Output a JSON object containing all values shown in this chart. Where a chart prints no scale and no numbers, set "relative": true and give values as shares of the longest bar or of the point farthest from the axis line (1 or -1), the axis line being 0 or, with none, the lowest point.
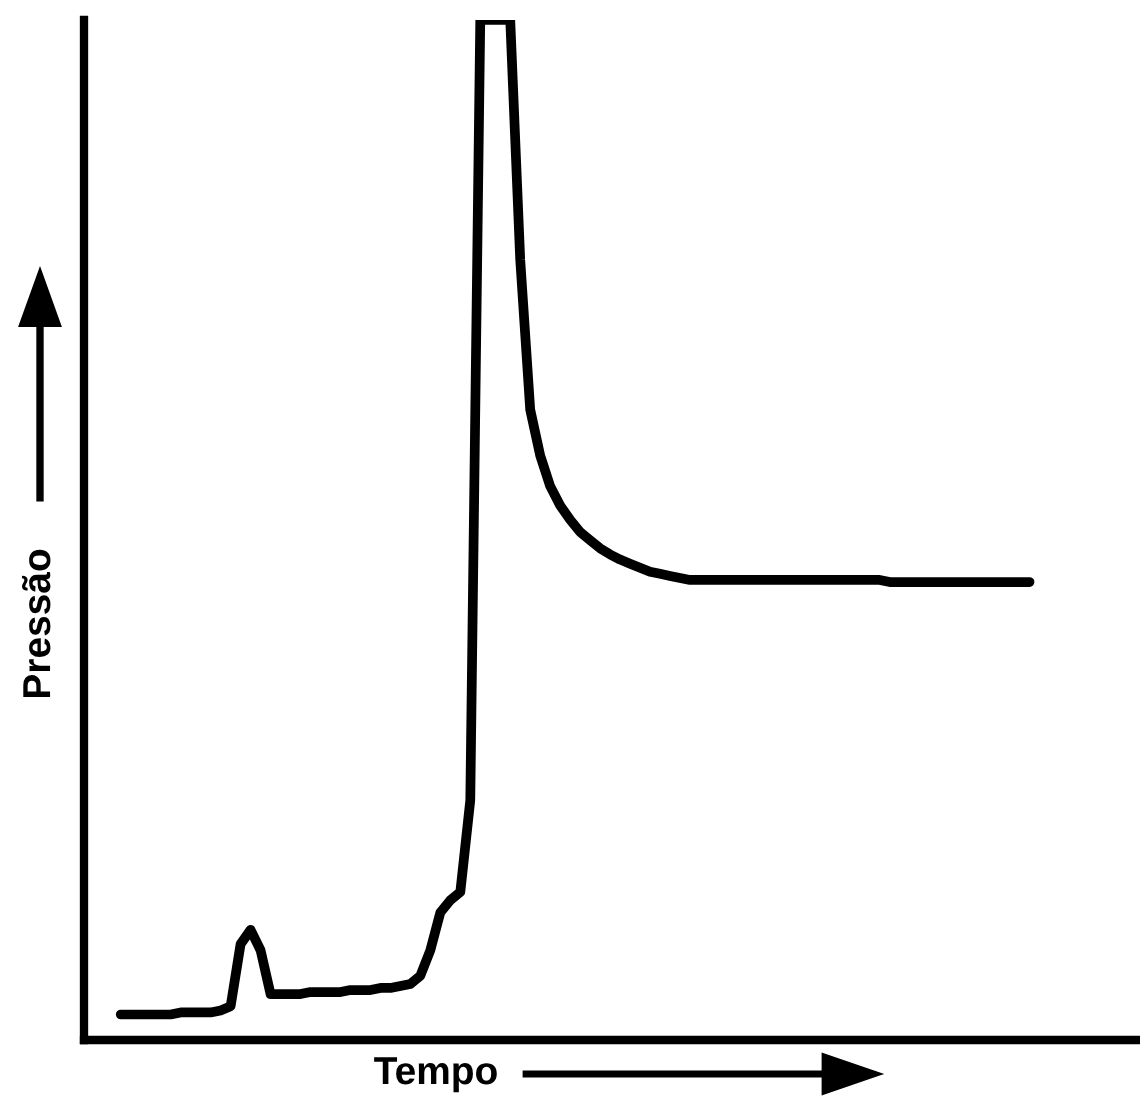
{
  "chart_data": {
    "type": "line",
    "xlabel": "Tempo",
    "ylabel": "Pressão",
    "relative": true,
    "tick_labels": false,
    "legend": false,
    "marker": "none",
    "line_style": "solid",
    "categories": [
      null,
      null,
      null,
      null,
      null,
      null,
      null,
      null,
      null,
      null,
      null,
      null,
      null,
      null,
      null,
      null,
      null,
      null,
      null,
      null,
      null,
      null,
      null,
      null,
      null,
      null,
      null,
      null,
      null,
      null,
      null,
      null,
      null,
      null,
      null,
      null,
      null,
      null,
      null,
      null,
      null,
      null,
      null,
      null,
      null,
      null,
      null,
      null,
      null,
      null,
      null,
      null,
      null,
      null,
      null,
      null,
      null,
      null,
      null,
      null,
      null,
      null,
      null,
      null,
      null,
      null,
      null,
      null,
      null,
      null,
      null,
      null,
      null,
      null,
      null,
      null,
      null,
      null,
      null,
      null,
      null,
      null,
      null,
      null,
      null,
      null,
      null,
      null,
      null,
      null,
      null,
      null
    ],
    "series": [
      {
        "color": "#000000",
        "values": [
          0.025,
          0.025,
          0.025,
          0.025,
          0.025,
          0.025,
          0.027,
          0.027,
          0.027,
          0.027,
          0.029,
          0.033,
          0.094,
          0.108,
          0.088,
          0.045,
          0.045,
          0.045,
          0.045,
          0.047,
          0.047,
          0.047,
          0.047,
          0.049,
          0.049,
          0.049,
          0.051,
          0.051,
          0.053,
          0.055,
          0.063,
          0.088,
          0.125,
          0.137,
          0.145,
          0.235,
          1,
          1,
          1,
          1,
          0.765,
          0.618,
          0.573,
          0.543,
          0.524,
          0.51,
          0.498,
          0.49,
          0.482,
          0.476,
          0.471,
          0.467,
          0.463,
          0.459,
          0.457,
          0.455,
          0.453,
          0.451,
          0.451,
          0.451,
          0.451,
          0.451,
          0.451,
          0.451,
          0.451,
          0.451,
          0.451,
          0.451,
          0.451,
          0.451,
          0.451,
          0.451,
          0.451,
          0.451,
          0.451,
          0.451,
          0.451,
          0.449,
          0.449,
          0.449,
          0.449,
          0.449,
          0.449,
          0.449,
          0.449,
          0.449,
          0.449,
          0.449,
          0.449,
          0.449,
          0.449,
          0.449
        ]
      }
    ]
  }
}
